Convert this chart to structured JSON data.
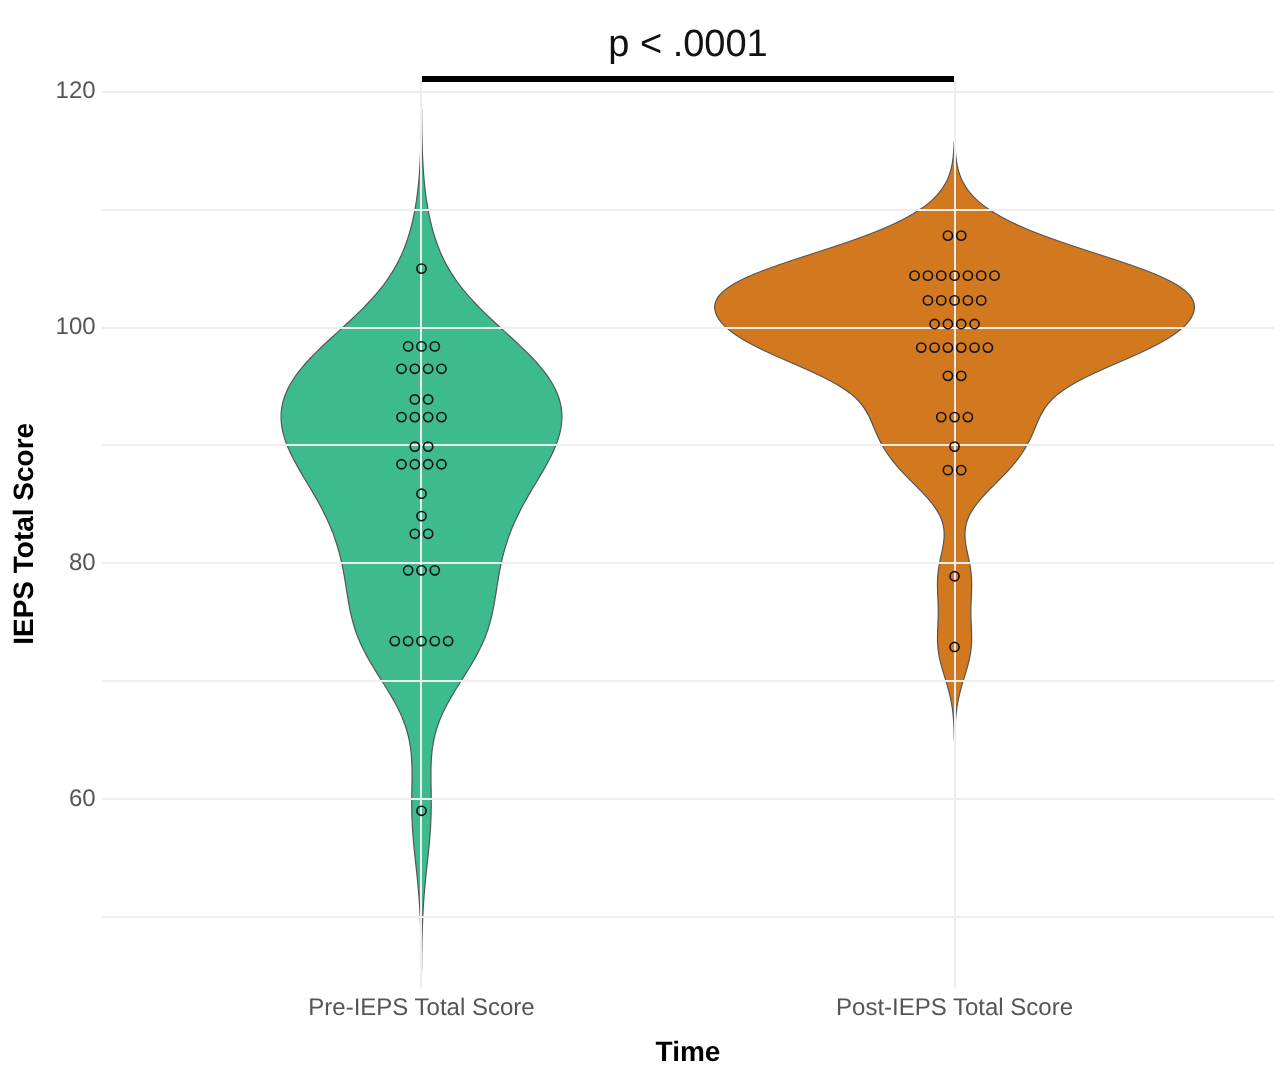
{
  "chart_data": {
    "type": "scatter",
    "xlabel": "Time",
    "ylabel": "IEPS Total Score",
    "categories": [
      "Pre-IEPS Total Score",
      "Post-IEPS Total Score"
    ],
    "series": [
      {
        "color": "#111111",
        "x": [
          "Pre-IEPS Total Score",
          "Pre-IEPS Total Score",
          "Pre-IEPS Total Score",
          "Pre-IEPS Total Score",
          "Pre-IEPS Total Score",
          "Pre-IEPS Total Score",
          "Pre-IEPS Total Score",
          "Pre-IEPS Total Score",
          "Pre-IEPS Total Score",
          "Pre-IEPS Total Score",
          "Pre-IEPS Total Score",
          "Pre-IEPS Total Score",
          "Pre-IEPS Total Score",
          "Pre-IEPS Total Score",
          "Pre-IEPS Total Score",
          "Pre-IEPS Total Score",
          "Pre-IEPS Total Score",
          "Pre-IEPS Total Score",
          "Pre-IEPS Total Score",
          "Pre-IEPS Total Score",
          "Pre-IEPS Total Score",
          "Pre-IEPS Total Score",
          "Pre-IEPS Total Score",
          "Pre-IEPS Total Score",
          "Pre-IEPS Total Score",
          "Pre-IEPS Total Score",
          "Pre-IEPS Total Score",
          "Pre-IEPS Total Score",
          "Pre-IEPS Total Score",
          "Pre-IEPS Total Score",
          "Pre-IEPS Total Score",
          "Pre-IEPS Total Score",
          "Pre-IEPS Total Score"
        ],
        "values": [
          105,
          98.4,
          98.4,
          98.4,
          96.5,
          96.5,
          96.5,
          96.5,
          93.9,
          93.9,
          92.4,
          92.4,
          92.4,
          92.4,
          89.9,
          89.9,
          88.4,
          88.4,
          88.4,
          88.4,
          85.9,
          84,
          82.5,
          82.5,
          79.4,
          79.4,
          79.4,
          73.4,
          73.4,
          73.4,
          73.4,
          73.4,
          59
        ]
      },
      {
        "color": "#111111",
        "x": [
          "Post-IEPS Total Score",
          "Post-IEPS Total Score",
          "Post-IEPS Total Score",
          "Post-IEPS Total Score",
          "Post-IEPS Total Score",
          "Post-IEPS Total Score",
          "Post-IEPS Total Score",
          "Post-IEPS Total Score",
          "Post-IEPS Total Score",
          "Post-IEPS Total Score",
          "Post-IEPS Total Score",
          "Post-IEPS Total Score",
          "Post-IEPS Total Score",
          "Post-IEPS Total Score",
          "Post-IEPS Total Score",
          "Post-IEPS Total Score",
          "Post-IEPS Total Score",
          "Post-IEPS Total Score",
          "Post-IEPS Total Score",
          "Post-IEPS Total Score",
          "Post-IEPS Total Score",
          "Post-IEPS Total Score",
          "Post-IEPS Total Score",
          "Post-IEPS Total Score",
          "Post-IEPS Total Score",
          "Post-IEPS Total Score",
          "Post-IEPS Total Score",
          "Post-IEPS Total Score",
          "Post-IEPS Total Score",
          "Post-IEPS Total Score",
          "Post-IEPS Total Score",
          "Post-IEPS Total Score",
          "Post-IEPS Total Score",
          "Post-IEPS Total Score"
        ],
        "values": [
          107.8,
          107.8,
          104.4,
          104.4,
          104.4,
          104.4,
          104.4,
          104.4,
          104.4,
          102.3,
          102.3,
          102.3,
          102.3,
          102.3,
          100.3,
          100.3,
          100.3,
          100.3,
          98.3,
          98.3,
          98.3,
          98.3,
          98.3,
          98.3,
          95.9,
          95.9,
          92.4,
          92.4,
          92.4,
          89.9,
          87.9,
          87.9,
          78.9,
          72.9
        ]
      }
    ],
    "ylim": [
      44,
      121
    ],
    "yticks": [
      {
        "value": 50,
        "label": null
      },
      60,
      {
        "value": 70,
        "label": null
      },
      80,
      {
        "value": 90,
        "label": null
      },
      100,
      {
        "value": 110,
        "label": null
      },
      120
    ],
    "grid": true,
    "legend": false,
    "marker": "circle",
    "annotations": [
      "p < .0001"
    ]
  }
}
